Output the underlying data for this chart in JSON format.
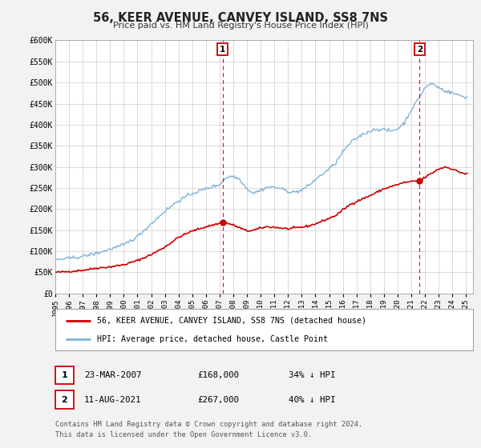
{
  "title": "56, KEER AVENUE, CANVEY ISLAND, SS8 7NS",
  "subtitle": "Price paid vs. HM Land Registry's House Price Index (HPI)",
  "ylim": [
    0,
    600000
  ],
  "yticks": [
    0,
    50000,
    100000,
    150000,
    200000,
    250000,
    300000,
    350000,
    400000,
    450000,
    500000,
    550000,
    600000
  ],
  "ytick_labels": [
    "£0",
    "£50K",
    "£100K",
    "£150K",
    "£200K",
    "£250K",
    "£300K",
    "£350K",
    "£400K",
    "£450K",
    "£500K",
    "£550K",
    "£600K"
  ],
  "xlim_start": 1995.0,
  "xlim_end": 2025.5,
  "background_color": "#f2f2f2",
  "plot_bg_color": "#ffffff",
  "grid_color": "#cccccc",
  "red_line_color": "#cc0000",
  "blue_line_color": "#7fb3d3",
  "marker_color": "#cc0000",
  "vline_color": "#cc0000",
  "annotation_box_color": "#cc0000",
  "sale1_x": 2007.22,
  "sale1_y": 168000,
  "sale2_x": 2021.61,
  "sale2_y": 267000,
  "legend_line1": "56, KEER AVENUE, CANVEY ISLAND, SS8 7NS (detached house)",
  "legend_line2": "HPI: Average price, detached house, Castle Point",
  "table_row1_num": "1",
  "table_row1_date": "23-MAR-2007",
  "table_row1_price": "£168,000",
  "table_row1_hpi": "34% ↓ HPI",
  "table_row2_num": "2",
  "table_row2_date": "11-AUG-2021",
  "table_row2_price": "£267,000",
  "table_row2_hpi": "40% ↓ HPI",
  "footer_line1": "Contains HM Land Registry data © Crown copyright and database right 2024.",
  "footer_line2": "This data is licensed under the Open Government Licence v3.0.",
  "red_keypoints": [
    [
      1995.0,
      50000
    ],
    [
      1996.0,
      52000
    ],
    [
      1997.0,
      55000
    ],
    [
      1998.0,
      60000
    ],
    [
      1999.0,
      63000
    ],
    [
      2000.0,
      68000
    ],
    [
      2001.0,
      78000
    ],
    [
      2002.0,
      92000
    ],
    [
      2003.0,
      110000
    ],
    [
      2004.0,
      133000
    ],
    [
      2005.0,
      148000
    ],
    [
      2006.0,
      158000
    ],
    [
      2007.22,
      168000
    ],
    [
      2007.5,
      167000
    ],
    [
      2008.0,
      162000
    ],
    [
      2008.5,
      155000
    ],
    [
      2009.0,
      148000
    ],
    [
      2009.5,
      150000
    ],
    [
      2010.0,
      155000
    ],
    [
      2010.5,
      158000
    ],
    [
      2011.0,
      157000
    ],
    [
      2011.5,
      155000
    ],
    [
      2012.0,
      153000
    ],
    [
      2012.5,
      155000
    ],
    [
      2013.0,
      157000
    ],
    [
      2013.5,
      160000
    ],
    [
      2014.0,
      165000
    ],
    [
      2015.0,
      178000
    ],
    [
      2015.5,
      185000
    ],
    [
      2016.0,
      198000
    ],
    [
      2016.5,
      210000
    ],
    [
      2017.0,
      218000
    ],
    [
      2017.5,
      225000
    ],
    [
      2018.0,
      232000
    ],
    [
      2018.5,
      240000
    ],
    [
      2019.0,
      248000
    ],
    [
      2019.5,
      253000
    ],
    [
      2020.0,
      258000
    ],
    [
      2020.5,
      263000
    ],
    [
      2021.0,
      265000
    ],
    [
      2021.61,
      267000
    ],
    [
      2022.0,
      275000
    ],
    [
      2022.5,
      285000
    ],
    [
      2023.0,
      295000
    ],
    [
      2023.5,
      300000
    ],
    [
      2024.0,
      295000
    ],
    [
      2024.5,
      288000
    ],
    [
      2025.0,
      283000
    ]
  ],
  "blue_keypoints": [
    [
      1995.0,
      80000
    ],
    [
      1996.0,
      83000
    ],
    [
      1997.0,
      88000
    ],
    [
      1998.0,
      95000
    ],
    [
      1999.0,
      105000
    ],
    [
      2000.0,
      115000
    ],
    [
      2001.0,
      135000
    ],
    [
      2002.0,
      165000
    ],
    [
      2003.0,
      195000
    ],
    [
      2004.0,
      220000
    ],
    [
      2005.0,
      237000
    ],
    [
      2006.0,
      248000
    ],
    [
      2007.0,
      258000
    ],
    [
      2007.5,
      275000
    ],
    [
      2008.0,
      278000
    ],
    [
      2008.5,
      270000
    ],
    [
      2009.0,
      248000
    ],
    [
      2009.5,
      238000
    ],
    [
      2010.0,
      245000
    ],
    [
      2010.5,
      252000
    ],
    [
      2011.0,
      252000
    ],
    [
      2011.5,
      248000
    ],
    [
      2012.0,
      242000
    ],
    [
      2012.5,
      240000
    ],
    [
      2013.0,
      245000
    ],
    [
      2013.5,
      255000
    ],
    [
      2014.0,
      270000
    ],
    [
      2015.0,
      295000
    ],
    [
      2015.5,
      310000
    ],
    [
      2016.0,
      335000
    ],
    [
      2016.5,
      355000
    ],
    [
      2017.0,
      368000
    ],
    [
      2017.5,
      378000
    ],
    [
      2018.0,
      385000
    ],
    [
      2018.5,
      390000
    ],
    [
      2019.0,
      388000
    ],
    [
      2019.5,
      385000
    ],
    [
      2020.0,
      390000
    ],
    [
      2020.5,
      405000
    ],
    [
      2021.0,
      435000
    ],
    [
      2021.5,
      460000
    ],
    [
      2022.0,
      488000
    ],
    [
      2022.5,
      498000
    ],
    [
      2023.0,
      488000
    ],
    [
      2023.5,
      480000
    ],
    [
      2024.0,
      475000
    ],
    [
      2024.5,
      470000
    ],
    [
      2025.0,
      465000
    ]
  ]
}
